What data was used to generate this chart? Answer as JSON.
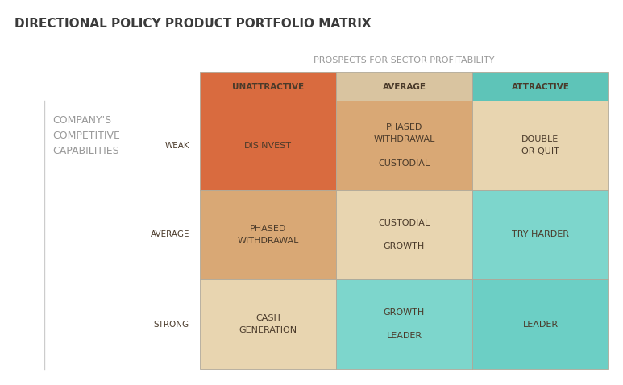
{
  "title": "DIRECTIONAL POLICY PRODUCT PORTFOLIO MATRIX",
  "col_header_label": "PROSPECTS FOR SECTOR PROFITABILITY",
  "row_header_label": "COMPANY'S\nCOMPETITIVE\nCAPABILITIES",
  "col_headers": [
    "UNATTRACTIVE",
    "AVERAGE",
    "ATTRACTIVE"
  ],
  "row_headers": [
    "WEAK",
    "AVERAGE",
    "STRONG"
  ],
  "col_header_colors": [
    "#D96B3F",
    "#D9C4A0",
    "#5EC4B8"
  ],
  "cells": [
    [
      {
        "text": "DISINVEST",
        "color": "#D96B3F"
      },
      {
        "text": "PHASED\nWITHDRAWAL\n\nCUSTODIAL",
        "color": "#D9A875"
      },
      {
        "text": "DOUBLE\nOR QUIT",
        "color": "#E8D5B0"
      }
    ],
    [
      {
        "text": "PHASED\nWITHDRAWAL",
        "color": "#D9A875"
      },
      {
        "text": "CUSTODIAL\n\nGROWTH",
        "color": "#E8D5B0"
      },
      {
        "text": "TRY HARDER",
        "color": "#7DD6CC"
      }
    ],
    [
      {
        "text": "CASH\nGENERATION",
        "color": "#E8D5B0"
      },
      {
        "text": "GROWTH\n\nLEADER",
        "color": "#7DD6CC"
      },
      {
        "text": "LEADER",
        "color": "#6CCFC5"
      }
    ]
  ],
  "cell_text_color": "#4a3a2a",
  "header_text_color": "#4a3a2a",
  "row_label_color": "#4a3a2a",
  "title_color": "#3a3a3a",
  "side_label_color": "#999999",
  "col_label_color": "#999999",
  "background_color": "#ffffff",
  "border_color": "#b0a898",
  "left_border_color": "#cccccc"
}
